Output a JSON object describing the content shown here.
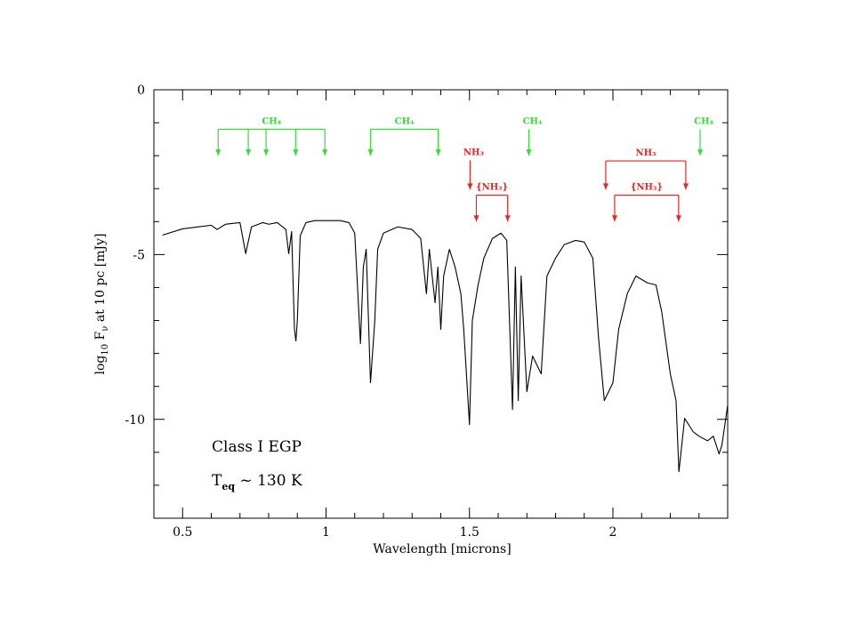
{
  "chart_data": {
    "type": "line",
    "xlabel": "Wavelength  [microns]",
    "ylabel": [
      "log",
      "10",
      " F",
      "ν",
      " at 10 pc [mJy]"
    ],
    "annotation_texts": [
      [
        "Class I EGP"
      ],
      [
        "T",
        "eq",
        " ~ 130 K"
      ]
    ],
    "color": "#000000",
    "x": [
      0.43,
      0.5,
      0.6,
      0.62,
      0.65,
      0.7,
      0.72,
      0.74,
      0.78,
      0.8,
      0.83,
      0.86,
      0.87,
      0.88,
      0.89,
      0.895,
      0.9,
      0.91,
      0.93,
      0.96,
      1.0,
      1.05,
      1.08,
      1.1,
      1.12,
      1.13,
      1.14,
      1.155,
      1.17,
      1.18,
      1.2,
      1.25,
      1.3,
      1.33,
      1.35,
      1.36,
      1.38,
      1.39,
      1.4,
      1.41,
      1.43,
      1.45,
      1.47,
      1.48,
      1.5,
      1.51,
      1.53,
      1.55,
      1.58,
      1.61,
      1.63,
      1.65,
      1.66,
      1.67,
      1.68,
      1.7,
      1.72,
      1.75,
      1.77,
      1.8,
      1.83,
      1.87,
      1.9,
      1.93,
      1.95,
      1.97,
      2.0,
      2.02,
      2.05,
      2.08,
      2.12,
      2.15,
      2.17,
      2.2,
      2.22,
      2.23,
      2.25,
      2.28,
      2.3,
      2.33,
      2.35,
      2.37,
      2.38,
      2.4
    ],
    "values": [
      -4.41,
      -4.22,
      -4.11,
      -4.24,
      -4.08,
      -4.03,
      -4.97,
      -4.16,
      -4.03,
      -4.08,
      -4.03,
      -4.24,
      -4.97,
      -4.3,
      -7.27,
      -7.62,
      -7.0,
      -4.43,
      -4.03,
      -3.97,
      -3.97,
      -3.97,
      -4.03,
      -4.35,
      -7.7,
      -5.38,
      -4.84,
      -8.89,
      -7.0,
      -4.84,
      -4.35,
      -4.16,
      -4.24,
      -4.51,
      -6.19,
      -4.84,
      -6.46,
      -5.38,
      -7.27,
      -5.65,
      -4.84,
      -5.38,
      -6.19,
      -7.27,
      -10.16,
      -7.0,
      -5.92,
      -5.11,
      -4.51,
      -4.35,
      -4.57,
      -9.7,
      -5.38,
      -9.43,
      -5.65,
      -9.16,
      -8.08,
      -8.62,
      -5.65,
      -5.11,
      -4.7,
      -4.57,
      -4.62,
      -5.11,
      -7.54,
      -9.43,
      -8.89,
      -7.27,
      -6.19,
      -5.65,
      -5.86,
      -5.92,
      -6.73,
      -8.62,
      -9.43,
      -11.59,
      -9.97,
      -10.38,
      -10.51,
      -10.65,
      -10.51,
      -11.05,
      -10.78,
      -9.57
    ],
    "xlim": [
      0.4,
      2.4
    ],
    "ylim": [
      -13,
      0
    ],
    "xticks": [
      0.5,
      1,
      1.5,
      2
    ],
    "yticks": [
      0,
      -5,
      -10
    ],
    "xminorticks": [
      0.4,
      0.6,
      0.7,
      0.8,
      0.9,
      1.1,
      1.2,
      1.3,
      1.4,
      1.6,
      1.7,
      1.8,
      1.9,
      2.1,
      2.2,
      2.3
    ],
    "yminorticks": [
      -1,
      -2,
      -3,
      -4,
      -6,
      -7,
      -8,
      -9,
      -11,
      -12
    ],
    "features": [
      {
        "label": "CH₄",
        "color": "#33dd33",
        "x": [
          0.624,
          0.729,
          0.791,
          0.894,
          0.996
        ],
        "top": -1.2,
        "tip": -2.0
      },
      {
        "label": "CH₄",
        "color": "#33dd33",
        "x": [
          1.155,
          1.391
        ],
        "top": -1.2,
        "tip": -2.0
      },
      {
        "label": "CH₄",
        "color": "#33dd33",
        "x": [
          1.707
        ],
        "top": -1.2,
        "tip": -2.0
      },
      {
        "label": "CH₄",
        "color": "#33dd33",
        "x": [
          2.304
        ],
        "top": -1.2,
        "tip": -2.0
      },
      {
        "label": "NH₃",
        "color": "#ee2222",
        "x": [
          1.502
        ],
        "top": -2.14,
        "tip": -3.03
      },
      {
        "label": "{NH₃}",
        "color": "#ee2222",
        "x": [
          1.524,
          1.633
        ],
        "top": -3.2,
        "tip": -4.0
      },
      {
        "label": "NH₃",
        "color": "#ee2222",
        "x": [
          1.975,
          2.254
        ],
        "top": -2.16,
        "tip": -3.03
      },
      {
        "label": "{NH₃}",
        "color": "#ee2222",
        "x": [
          2.006,
          2.229
        ],
        "top": -3.2,
        "tip": -4.0
      }
    ]
  }
}
